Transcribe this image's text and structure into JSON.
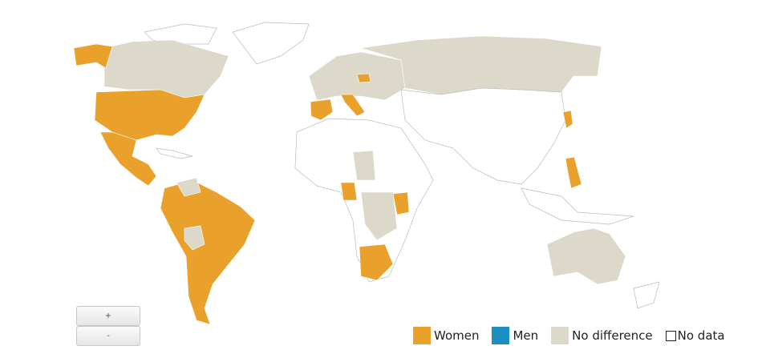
{
  "zoom": {
    "in": "+",
    "out": "-"
  },
  "legend": [
    {
      "label": "Women",
      "color": "#e9a12c"
    },
    {
      "label": "Men",
      "color": "#1b8fc2"
    },
    {
      "label": "No difference",
      "color": "#dcd8ca"
    },
    {
      "label": "No data",
      "color": "#ffffff"
    }
  ]
}
